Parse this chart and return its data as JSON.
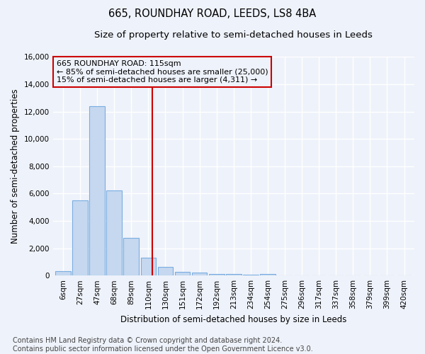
{
  "title": "665, ROUNDHAY ROAD, LEEDS, LS8 4BA",
  "subtitle": "Size of property relative to semi-detached houses in Leeds",
  "xlabel": "Distribution of semi-detached houses by size in Leeds",
  "ylabel": "Number of semi-detached properties",
  "footnote": "Contains HM Land Registry data © Crown copyright and database right 2024.\nContains public sector information licensed under the Open Government Licence v3.0.",
  "bar_labels": [
    "6sqm",
    "27sqm",
    "47sqm",
    "68sqm",
    "89sqm",
    "110sqm",
    "130sqm",
    "151sqm",
    "172sqm",
    "192sqm",
    "213sqm",
    "234sqm",
    "254sqm",
    "275sqm",
    "296sqm",
    "317sqm",
    "337sqm",
    "358sqm",
    "379sqm",
    "399sqm",
    "420sqm"
  ],
  "bar_values": [
    300,
    5500,
    12400,
    6200,
    2750,
    1320,
    620,
    270,
    200,
    130,
    100,
    80,
    110,
    0,
    0,
    0,
    0,
    0,
    0,
    0,
    0
  ],
  "bar_color": "#c5d8f0",
  "bar_edge_color": "#7aade0",
  "vline_color": "#cc0000",
  "annotation_text_line1": "665 ROUNDHAY ROAD: 115sqm",
  "annotation_text_line2": "← 85% of semi-detached houses are smaller (25,000)",
  "annotation_text_line3": "15% of semi-detached houses are larger (4,311) →",
  "annotation_box_color": "#cc0000",
  "ylim": [
    0,
    16000
  ],
  "yticks": [
    0,
    2000,
    4000,
    6000,
    8000,
    10000,
    12000,
    14000,
    16000
  ],
  "bg_color": "#eef2fa",
  "grid_color": "#ffffff",
  "title_fontsize": 10.5,
  "subtitle_fontsize": 9.5,
  "axis_label_fontsize": 8.5,
  "tick_fontsize": 7.5,
  "annotation_fontsize": 8,
  "footnote_fontsize": 7
}
